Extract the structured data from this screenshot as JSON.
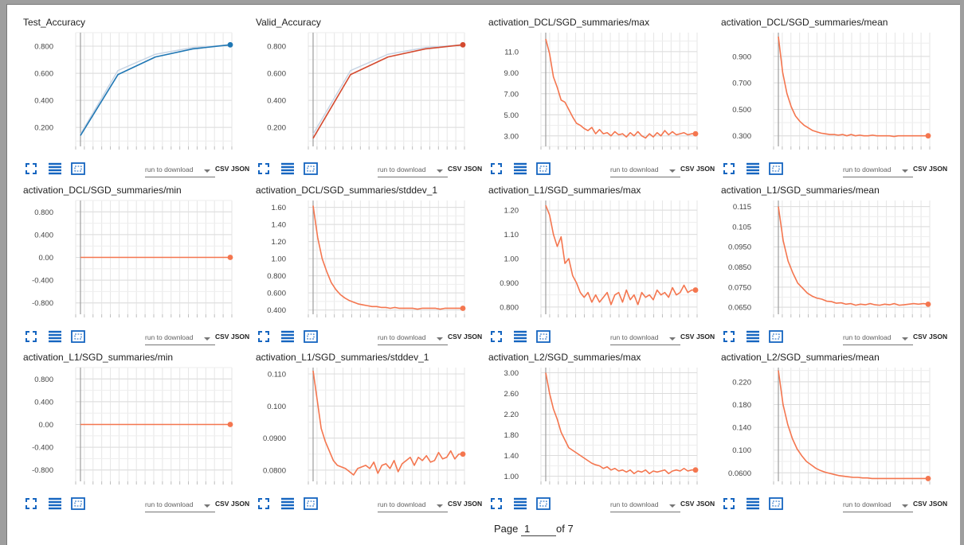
{
  "pager": {
    "label": "Page",
    "current": "1",
    "of_text": "of 7"
  },
  "toolbar": {
    "download_placeholder": "run to download",
    "csv_label": "CSV",
    "json_label": "JSON"
  },
  "colors": {
    "test": "#1f77b4",
    "valid": "#d44a2f",
    "orange": "#f4764f"
  },
  "chart_data": [
    {
      "type": "line",
      "title": "Test_Accuracy",
      "color": "#1f77b4",
      "ylim": [
        0.06,
        0.9
      ],
      "yticks": [
        "0.200",
        "0.400",
        "0.600",
        "0.800"
      ],
      "ytick_values": [
        0.2,
        0.4,
        0.6,
        0.8
      ],
      "series": [
        {
          "values": [
            0.14,
            0.59,
            0.72,
            0.78,
            0.81
          ],
          "smoothed_shadow": [
            0.15,
            0.62,
            0.74,
            0.79,
            0.81
          ]
        }
      ]
    },
    {
      "type": "line",
      "title": "Valid_Accuracy",
      "color": "#d44a2f",
      "ylim": [
        0.06,
        0.9
      ],
      "yticks": [
        "0.200",
        "0.400",
        "0.600",
        "0.800"
      ],
      "ytick_values": [
        0.2,
        0.4,
        0.6,
        0.8
      ],
      "series": [
        {
          "values": [
            0.12,
            0.59,
            0.72,
            0.78,
            0.81
          ],
          "smoothed_shadow": [
            0.15,
            0.62,
            0.74,
            0.79,
            0.81
          ]
        }
      ]
    },
    {
      "type": "line",
      "title": "activation_DCL/SGD_summaries/max",
      "color": "#f4764f",
      "ylim": [
        2.0,
        12.8
      ],
      "yticks": [
        "3.00",
        "5.00",
        "7.00",
        "9.00",
        "11.0"
      ],
      "ytick_values": [
        3,
        5,
        7,
        9,
        11
      ],
      "series": [
        {
          "values": [
            12.2,
            10.8,
            8.6,
            7.6,
            6.4,
            6.2,
            5.5,
            4.8,
            4.2,
            4.0,
            3.7,
            3.5,
            3.8,
            3.2,
            3.6,
            3.2,
            3.3,
            3.0,
            3.4,
            3.1,
            3.2,
            2.9,
            3.3,
            3.0,
            3.4,
            3.0,
            2.8,
            3.2,
            2.9,
            3.3,
            3.0,
            3.5,
            3.1,
            3.4,
            3.1,
            3.2,
            3.3,
            3.1,
            3.2,
            3.2
          ]
        }
      ]
    },
    {
      "type": "line",
      "title": "activation_DCL/SGD_summaries/mean",
      "color": "#f4764f",
      "ylim": [
        0.22,
        1.08
      ],
      "yticks": [
        "0.300",
        "0.500",
        "0.700",
        "0.900"
      ],
      "ytick_values": [
        0.3,
        0.5,
        0.7,
        0.9
      ],
      "series": [
        {
          "values": [
            1.05,
            0.78,
            0.62,
            0.52,
            0.45,
            0.41,
            0.38,
            0.36,
            0.34,
            0.33,
            0.32,
            0.315,
            0.31,
            0.31,
            0.305,
            0.31,
            0.3,
            0.31,
            0.3,
            0.305,
            0.3,
            0.3,
            0.305,
            0.3,
            0.3,
            0.3,
            0.3,
            0.295,
            0.3,
            0.3,
            0.3,
            0.3,
            0.3,
            0.3,
            0.3,
            0.3
          ]
        }
      ]
    },
    {
      "type": "line",
      "title": "activation_DCL/SGD_summaries/min",
      "color": "#f4764f",
      "ylim": [
        -1.0,
        1.0
      ],
      "yticks": [
        "-0.800",
        "-0.400",
        "0.00",
        "0.400",
        "0.800"
      ],
      "ytick_values": [
        -0.8,
        -0.4,
        0,
        0.4,
        0.8
      ],
      "series": [
        {
          "values": [
            0,
            0,
            0,
            0,
            0,
            0,
            0,
            0,
            0,
            0
          ]
        }
      ]
    },
    {
      "type": "line",
      "title": "activation_DCL/SGD_summaries/stddev_1",
      "color": "#f4764f",
      "ylim": [
        0.35,
        1.68
      ],
      "yticks": [
        "0.400",
        "0.600",
        "0.800",
        "1.00",
        "1.20",
        "1.40",
        "1.60"
      ],
      "ytick_values": [
        0.4,
        0.6,
        0.8,
        1.0,
        1.2,
        1.4,
        1.6
      ],
      "series": [
        {
          "values": [
            1.62,
            1.25,
            1.0,
            0.85,
            0.72,
            0.64,
            0.58,
            0.54,
            0.51,
            0.49,
            0.47,
            0.46,
            0.45,
            0.44,
            0.44,
            0.43,
            0.43,
            0.42,
            0.43,
            0.42,
            0.42,
            0.42,
            0.42,
            0.41,
            0.42,
            0.42,
            0.42,
            0.42,
            0.41,
            0.42,
            0.42,
            0.42,
            0.42,
            0.42
          ]
        }
      ]
    },
    {
      "type": "line",
      "title": "activation_L1/SGD_summaries/max",
      "color": "#f4764f",
      "ylim": [
        0.77,
        1.24
      ],
      "yticks": [
        "0.800",
        "0.900",
        "1.00",
        "1.10",
        "1.20"
      ],
      "ytick_values": [
        0.8,
        0.9,
        1.0,
        1.1,
        1.2
      ],
      "series": [
        {
          "values": [
            1.22,
            1.18,
            1.1,
            1.05,
            1.09,
            0.98,
            1.0,
            0.93,
            0.9,
            0.86,
            0.84,
            0.86,
            0.82,
            0.85,
            0.82,
            0.84,
            0.86,
            0.81,
            0.85,
            0.86,
            0.82,
            0.87,
            0.83,
            0.85,
            0.81,
            0.86,
            0.84,
            0.85,
            0.83,
            0.87,
            0.85,
            0.86,
            0.84,
            0.88,
            0.85,
            0.86,
            0.89,
            0.86,
            0.87,
            0.87
          ]
        }
      ]
    },
    {
      "type": "line",
      "title": "activation_L1/SGD_summaries/mean",
      "color": "#f4764f",
      "ylim": [
        0.0615,
        0.118
      ],
      "yticks": [
        "0.0650",
        "0.0750",
        "0.0850",
        "0.0950",
        "0.105",
        "0.115"
      ],
      "ytick_values": [
        0.065,
        0.075,
        0.085,
        0.095,
        0.105,
        0.115
      ],
      "series": [
        {
          "values": [
            0.115,
            0.098,
            0.088,
            0.082,
            0.077,
            0.0745,
            0.072,
            0.0705,
            0.0695,
            0.069,
            0.068,
            0.0678,
            0.067,
            0.0672,
            0.0665,
            0.0668,
            0.066,
            0.0665,
            0.0662,
            0.0668,
            0.0662,
            0.066,
            0.0665,
            0.0662,
            0.0668,
            0.066,
            0.0662,
            0.0665,
            0.0668,
            0.0665,
            0.0668,
            0.0665
          ]
        }
      ]
    },
    {
      "type": "line",
      "title": "activation_L1/SGD_summaries/min",
      "color": "#f4764f",
      "ylim": [
        -1.0,
        1.0
      ],
      "yticks": [
        "-0.800",
        "-0.400",
        "0.00",
        "0.400",
        "0.800"
      ],
      "ytick_values": [
        -0.8,
        -0.4,
        0,
        0.4,
        0.8
      ],
      "series": [
        {
          "values": [
            0,
            0,
            0,
            0,
            0,
            0,
            0,
            0,
            0,
            0
          ]
        }
      ]
    },
    {
      "type": "line",
      "title": "activation_L1/SGD_summaries/stddev_1",
      "color": "#f4764f",
      "ylim": [
        0.0765,
        0.112
      ],
      "yticks": [
        "0.0800",
        "0.0900",
        "0.100",
        "0.110"
      ],
      "ytick_values": [
        0.08,
        0.09,
        0.1,
        0.11
      ],
      "series": [
        {
          "values": [
            0.111,
            0.102,
            0.093,
            0.089,
            0.086,
            0.083,
            0.0815,
            0.081,
            0.0805,
            0.0795,
            0.0785,
            0.0805,
            0.081,
            0.0815,
            0.0805,
            0.0825,
            0.079,
            0.0815,
            0.082,
            0.0805,
            0.083,
            0.0795,
            0.082,
            0.083,
            0.084,
            0.0815,
            0.084,
            0.083,
            0.0845,
            0.0825,
            0.083,
            0.0855,
            0.0835,
            0.084,
            0.086,
            0.0835,
            0.085,
            0.085
          ]
        }
      ]
    },
    {
      "type": "line",
      "title": "activation_L2/SGD_summaries/max",
      "color": "#f4764f",
      "ylim": [
        0.9,
        3.1
      ],
      "yticks": [
        "1.00",
        "1.40",
        "1.80",
        "2.20",
        "2.60",
        "3.00"
      ],
      "ytick_values": [
        1.0,
        1.4,
        1.8,
        2.2,
        2.6,
        3.0
      ],
      "series": [
        {
          "values": [
            3.0,
            2.6,
            2.3,
            2.1,
            1.85,
            1.7,
            1.55,
            1.5,
            1.45,
            1.4,
            1.35,
            1.3,
            1.25,
            1.22,
            1.2,
            1.15,
            1.18,
            1.12,
            1.15,
            1.1,
            1.12,
            1.08,
            1.12,
            1.05,
            1.1,
            1.08,
            1.12,
            1.05,
            1.1,
            1.08,
            1.1,
            1.12,
            1.05,
            1.1,
            1.12,
            1.1,
            1.15,
            1.1,
            1.12,
            1.12
          ]
        }
      ]
    },
    {
      "type": "line",
      "title": "activation_L2/SGD_summaries/mean",
      "color": "#f4764f",
      "ylim": [
        0.045,
        0.245
      ],
      "yticks": [
        "0.0600",
        "0.100",
        "0.140",
        "0.180",
        "0.220"
      ],
      "ytick_values": [
        0.06,
        0.1,
        0.14,
        0.18,
        0.22
      ],
      "series": [
        {
          "values": [
            0.24,
            0.18,
            0.145,
            0.12,
            0.102,
            0.09,
            0.08,
            0.074,
            0.068,
            0.064,
            0.061,
            0.059,
            0.057,
            0.055,
            0.054,
            0.053,
            0.052,
            0.052,
            0.051,
            0.051,
            0.05,
            0.05,
            0.05,
            0.05,
            0.05,
            0.05,
            0.05,
            0.05,
            0.05,
            0.05,
            0.05,
            0.05,
            0.05
          ]
        }
      ]
    }
  ]
}
